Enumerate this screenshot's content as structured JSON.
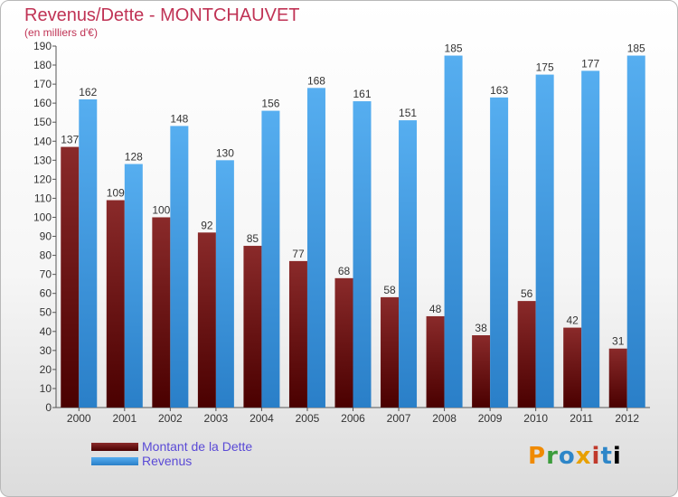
{
  "chart_data": {
    "type": "bar",
    "title": "Revenus/Dette - MONTCHAUVET",
    "subtitle": "(en milliers d'€)",
    "categories": [
      "2000",
      "2001",
      "2002",
      "2003",
      "2004",
      "2005",
      "2006",
      "2007",
      "2008",
      "2009",
      "2010",
      "2011",
      "2012"
    ],
    "series": [
      {
        "name": "Montant de la Dette",
        "color": "#7a1414",
        "values": [
          137,
          109,
          100,
          92,
          85,
          77,
          68,
          58,
          48,
          38,
          56,
          42,
          31
        ]
      },
      {
        "name": "Revenus",
        "color": "#3a96dc",
        "values": [
          162,
          128,
          148,
          130,
          156,
          168,
          161,
          151,
          185,
          163,
          175,
          177,
          185
        ]
      }
    ],
    "ylim": [
      0,
      190
    ],
    "ytick_step": 10,
    "grid": false,
    "legend": "bottom-left"
  },
  "logo": {
    "letters": [
      "P",
      "r",
      "o",
      "x",
      "i",
      "t",
      "i"
    ]
  }
}
